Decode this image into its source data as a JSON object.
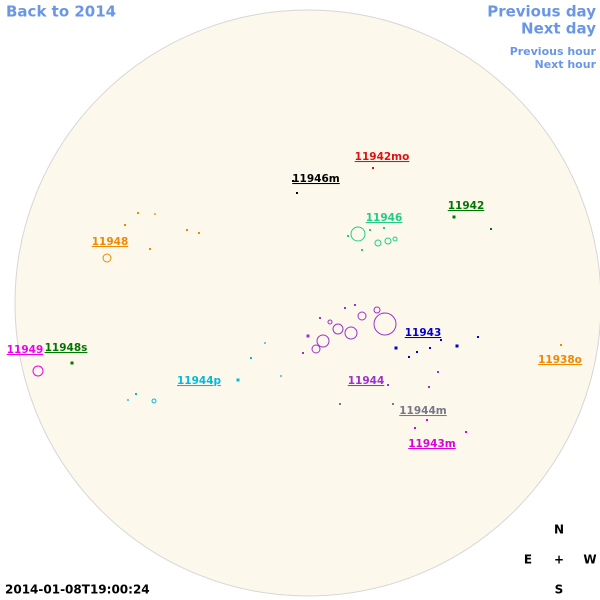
{
  "nav": {
    "back": "Back to 2014",
    "previous_day": "Previous day",
    "next_day": "Next day",
    "previous_hour": "Previous hour",
    "next_hour": "Next hour"
  },
  "regions": [
    {
      "label": "11942mo",
      "color": "#e01010"
    },
    {
      "label": "11946m",
      "color": "#000000"
    },
    {
      "label": "11946",
      "color": "#22cc88"
    },
    {
      "label": "11942",
      "color": "#007700"
    },
    {
      "label": "11948",
      "color": "#ee8800"
    },
    {
      "label": "11949",
      "color": "#ee00ee"
    },
    {
      "label": "11948s",
      "color": "#007700"
    },
    {
      "label": "11944p",
      "color": "#00bbdd"
    },
    {
      "label": "11943",
      "color": "#0000cc"
    },
    {
      "label": "11938o",
      "color": "#ee8800"
    },
    {
      "label": "11944",
      "color": "#9933cc"
    },
    {
      "label": "11944m",
      "color": "#777788"
    },
    {
      "label": "11943m",
      "color": "#dd00dd"
    }
  ],
  "compass": {
    "north": "N",
    "east": "E",
    "center": "+",
    "west": "W",
    "south": "S"
  },
  "timestamp": "2014-01-08T19:00:24"
}
